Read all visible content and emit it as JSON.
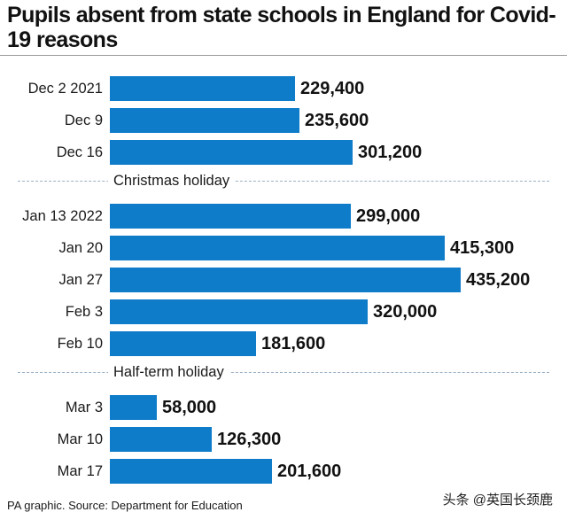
{
  "title": "Pupils absent from state schools in England for Covid-19 reasons",
  "source": "PA graphic. Source: Department for Education",
  "watermark": "头条 @英国长颈鹿",
  "colors": {
    "bar": "#0f7cc9"
  },
  "chart_data": {
    "type": "bar",
    "orientation": "horizontal",
    "title": "Pupils absent from state schools in England for Covid-19 reasons",
    "xlabel": "",
    "ylabel": "",
    "xlim": [
      0,
      440000
    ],
    "categories": [
      "Dec 2 2021",
      "Dec 9",
      "Dec 16",
      "Jan 13 2022",
      "Jan 20",
      "Jan 27",
      "Feb 3",
      "Feb 10",
      "Mar 3",
      "Mar 10",
      "Mar 17"
    ],
    "values": [
      229400,
      235600,
      301200,
      299000,
      415300,
      435200,
      320000,
      181600,
      58000,
      126300,
      201600
    ],
    "value_labels": [
      "229,400",
      "235,600",
      "301,200",
      "299,000",
      "415,300",
      "435,200",
      "320,000",
      "181,600",
      "58,000",
      "126,300",
      "201,600"
    ],
    "separators": [
      {
        "label": "Christmas holiday",
        "after_index": 2
      },
      {
        "label": "Half-term holiday",
        "after_index": 7
      }
    ],
    "grid": false,
    "legend": "none"
  }
}
